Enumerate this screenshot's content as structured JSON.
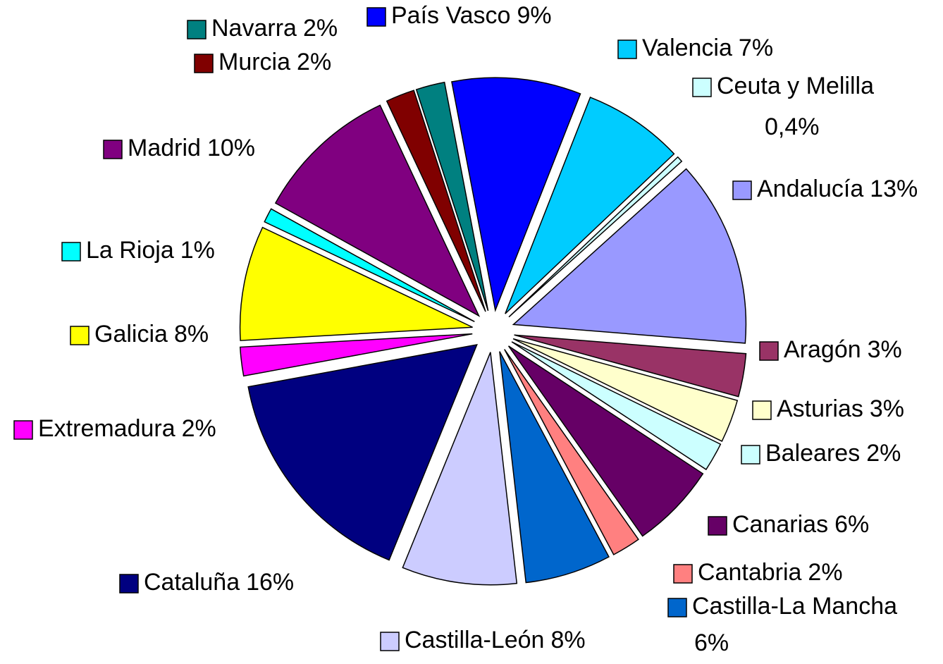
{
  "chart_data": {
    "type": "pie",
    "categories": [
      "Andalucía",
      "Aragón",
      "Asturias",
      "Baleares",
      "Canarias",
      "Cantabria",
      "Castilla-La Mancha",
      "Castilla-León",
      "Cataluña",
      "Extremadura",
      "Galicia",
      "La Rioja",
      "Madrid",
      "Murcia",
      "Navarra",
      "País Vasco",
      "Valencia",
      "Ceuta y Melilla"
    ],
    "values": [
      13,
      3,
      3,
      2,
      6,
      2,
      6,
      8,
      16,
      2,
      8,
      1,
      10,
      2,
      2,
      9,
      7,
      0.4
    ],
    "value_labels": [
      "13%",
      "3%",
      "3%",
      "2%",
      "6%",
      "2%",
      "6%",
      "8%",
      "16%",
      "2%",
      "8%",
      "1%",
      "10%",
      "2%",
      "2%",
      "9%",
      "7%",
      "0,4%"
    ],
    "colors": [
      "#9999ff",
      "#993366",
      "#ffffcc",
      "#ccffff",
      "#660066",
      "#ff8080",
      "#0066cc",
      "#ccccff",
      "#000080",
      "#ff00ff",
      "#ffff00",
      "#00ffff",
      "#800080",
      "#800000",
      "#008080",
      "#0000ff",
      "#00ccff",
      "#ccffff"
    ]
  }
}
